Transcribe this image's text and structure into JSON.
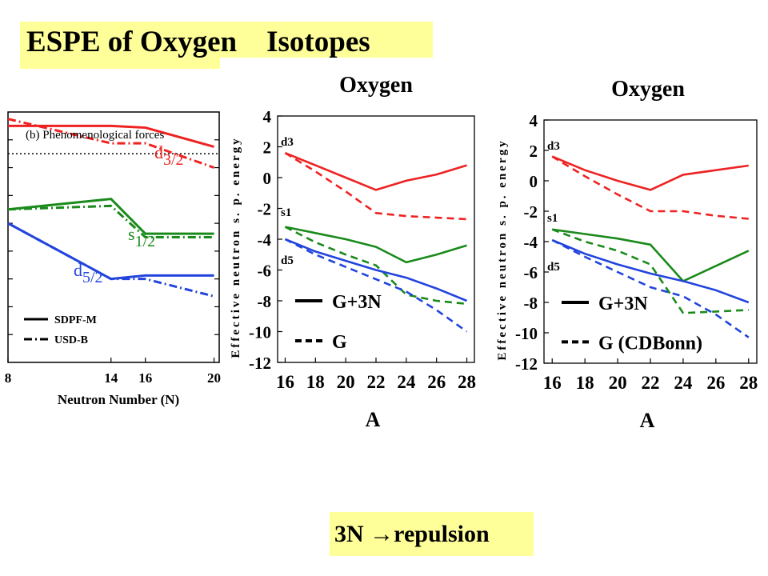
{
  "slide": {
    "title": "ESPE of Oxygen    Isotopes",
    "callout": "3N →repulsion"
  },
  "colors": {
    "d3": "#ee2222",
    "s1": "#1a8a1a",
    "d5": "#2244dd",
    "banner": "#ffff99"
  },
  "chart_data": [
    {
      "type": "line",
      "inset_title": "(b) Phenomenological forces",
      "xlabel": "Neutron Number (N)",
      "xticks": [
        "8",
        "14",
        "16",
        "20"
      ],
      "x": [
        8,
        14,
        16,
        20
      ],
      "xlim": [
        8,
        20.3
      ],
      "ylim": [
        -6,
        1.2
      ],
      "reference_line_y": 0,
      "orbit_labels": [
        {
          "main": "d",
          "sub": "3/2",
          "color_key": "d3"
        },
        {
          "main": "s",
          "sub": "1/2",
          "color_key": "s1"
        },
        {
          "main": "d",
          "sub": "5/2",
          "color_key": "d5"
        }
      ],
      "legend": [
        "SDPF-M",
        "USD-B"
      ],
      "series": [
        {
          "name": "SDPF-M",
          "orbit": "d3",
          "values": [
            0.8,
            0.8,
            0.75,
            0.2
          ]
        },
        {
          "name": "USD-B",
          "orbit": "d3",
          "values": [
            1.0,
            0.3,
            0.3,
            -0.4
          ]
        },
        {
          "name": "SDPF-M",
          "orbit": "s1",
          "values": [
            -1.6,
            -1.3,
            -2.3,
            -2.3
          ]
        },
        {
          "name": "USD-B",
          "orbit": "s1",
          "values": [
            -1.6,
            -1.5,
            -2.4,
            -2.4
          ]
        },
        {
          "name": "SDPF-M",
          "orbit": "d5",
          "values": [
            -2.0,
            -3.6,
            -3.5,
            -3.5
          ]
        },
        {
          "name": "USD-B",
          "orbit": "d5",
          "values": [
            -2.0,
            -3.6,
            -3.6,
            -4.1
          ]
        }
      ]
    },
    {
      "type": "line",
      "title": "Oxygen",
      "ylabel": "Effective neutron s. p. energy",
      "xlabel": "A",
      "x": [
        16,
        18,
        20,
        22,
        24,
        26,
        28
      ],
      "xlim": [
        15.5,
        28.5
      ],
      "ylim": [
        -12,
        4
      ],
      "yticks": [
        "4",
        "2",
        "0",
        "-2",
        "-4",
        "-6",
        "-8",
        "-10",
        "-12"
      ],
      "xticks": [
        "16",
        "18",
        "20",
        "22",
        "24",
        "26",
        "28"
      ],
      "orbit_labels": [
        "d3",
        "s1",
        "d5"
      ],
      "legend": [
        "G+3N",
        "G"
      ],
      "series": [
        {
          "name": "G+3N",
          "orbit": "d3",
          "values": [
            1.6,
            0.8,
            0.0,
            -0.8,
            -0.2,
            0.2,
            0.8
          ]
        },
        {
          "name": "G",
          "orbit": "d3",
          "values": [
            1.6,
            0.4,
            -0.9,
            -2.3,
            -2.5,
            -2.6,
            -2.7
          ]
        },
        {
          "name": "G+3N",
          "orbit": "s1",
          "values": [
            -3.2,
            -3.6,
            -4.0,
            -4.5,
            -5.5,
            -5.0,
            -4.4
          ]
        },
        {
          "name": "G",
          "orbit": "s1",
          "values": [
            -3.2,
            -4.2,
            -5.0,
            -5.7,
            -7.6,
            -8.0,
            -8.2
          ]
        },
        {
          "name": "G+3N",
          "orbit": "d5",
          "values": [
            -4.0,
            -4.8,
            -5.4,
            -6.0,
            -6.5,
            -7.2,
            -8.0
          ]
        },
        {
          "name": "G",
          "orbit": "d5",
          "values": [
            -4.0,
            -5.0,
            -5.8,
            -6.6,
            -7.4,
            -8.6,
            -10.0
          ]
        }
      ]
    },
    {
      "type": "line",
      "title": "Oxygen",
      "ylabel": "Effective neutron s. p. energy",
      "xlabel": "A",
      "x": [
        16,
        18,
        20,
        22,
        24,
        26,
        28
      ],
      "xlim": [
        15.5,
        28.5
      ],
      "ylim": [
        -12,
        4
      ],
      "yticks": [
        "4",
        "2",
        "0",
        "-2",
        "-4",
        "-6",
        "-8",
        "-10",
        "-12"
      ],
      "xticks": [
        "16",
        "18",
        "20",
        "22",
        "24",
        "26",
        "28"
      ],
      "orbit_labels": [
        "d3",
        "s1",
        "d5"
      ],
      "legend": [
        "G+3N",
        "G (CDBonn)"
      ],
      "series": [
        {
          "name": "G+3N",
          "orbit": "d3",
          "values": [
            1.6,
            0.7,
            0.0,
            -0.6,
            0.4,
            0.7,
            1.0
          ]
        },
        {
          "name": "G (CDBonn)",
          "orbit": "d3",
          "values": [
            1.6,
            0.3,
            -0.9,
            -2.0,
            -2.0,
            -2.3,
            -2.5
          ]
        },
        {
          "name": "G+3N",
          "orbit": "s1",
          "values": [
            -3.2,
            -3.5,
            -3.8,
            -4.2,
            -6.6,
            -5.6,
            -4.6
          ]
        },
        {
          "name": "G (CDBonn)",
          "orbit": "s1",
          "values": [
            -3.2,
            -4.0,
            -4.6,
            -5.5,
            -8.7,
            -8.6,
            -8.5
          ]
        },
        {
          "name": "G+3N",
          "orbit": "d5",
          "values": [
            -3.9,
            -4.8,
            -5.5,
            -6.1,
            -6.6,
            -7.2,
            -8.0
          ]
        },
        {
          "name": "G (CDBonn)",
          "orbit": "d5",
          "values": [
            -3.9,
            -5.0,
            -6.0,
            -7.0,
            -7.6,
            -8.8,
            -10.3
          ]
        }
      ]
    }
  ]
}
